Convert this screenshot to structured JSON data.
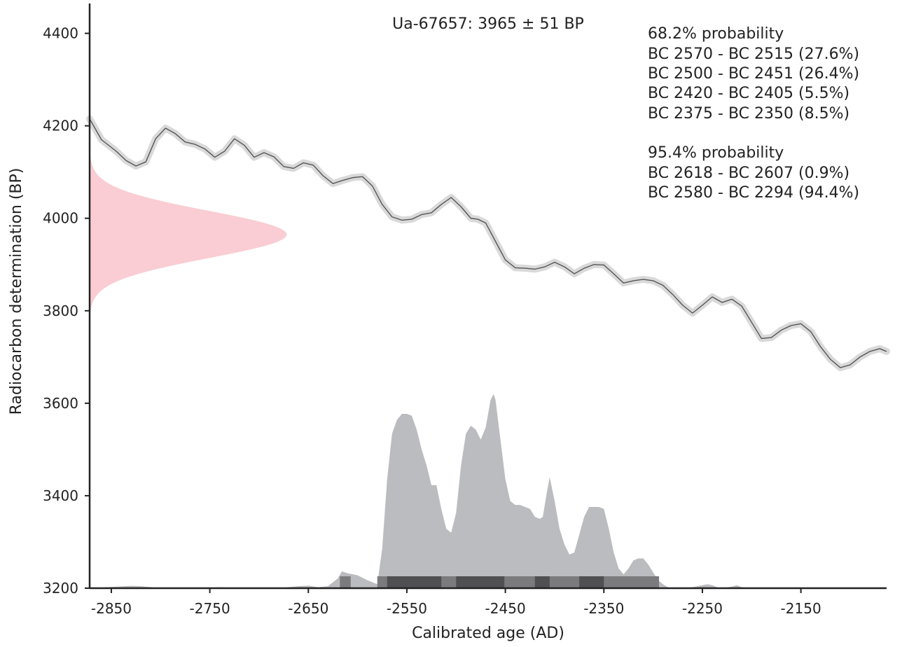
{
  "chart_data": {
    "type": "area",
    "title": "Ua-67657: 3965 ± 51 BP",
    "xlabel": "Calibrated age (AD)",
    "ylabel": "Radiocarbon determination (BP)",
    "xlim": [
      -2872,
      -2063
    ],
    "ylim": [
      3200,
      4460
    ],
    "xticks": [
      -2850,
      -2750,
      -2650,
      -2550,
      -2450,
      -2350,
      -2250,
      -2150
    ],
    "yticks": [
      3200,
      3400,
      3600,
      3800,
      4000,
      4200,
      4400
    ],
    "grid": false,
    "measurement": {
      "mean_bp": 3965,
      "sigma_bp": 51,
      "color": "#f9cdd3"
    },
    "calibration_curve": {
      "line_color": "#555555",
      "band_color": "#d9d9d9",
      "x": [
        -2872,
        -2860,
        -2845,
        -2835,
        -2825,
        -2815,
        -2805,
        -2795,
        -2785,
        -2775,
        -2765,
        -2755,
        -2745,
        -2735,
        -2725,
        -2715,
        -2705,
        -2695,
        -2685,
        -2675,
        -2665,
        -2655,
        -2645,
        -2635,
        -2625,
        -2615,
        -2605,
        -2595,
        -2585,
        -2575,
        -2565,
        -2555,
        -2545,
        -2535,
        -2525,
        -2515,
        -2505,
        -2495,
        -2485,
        -2478,
        -2470,
        -2460,
        -2450,
        -2440,
        -2430,
        -2420,
        -2410,
        -2400,
        -2390,
        -2380,
        -2370,
        -2360,
        -2350,
        -2340,
        -2330,
        -2320,
        -2310,
        -2300,
        -2290,
        -2280,
        -2270,
        -2260,
        -2250,
        -2240,
        -2230,
        -2220,
        -2210,
        -2200,
        -2190,
        -2180,
        -2170,
        -2160,
        -2150,
        -2140,
        -2130,
        -2120,
        -2110,
        -2100,
        -2090,
        -2080,
        -2070,
        -2063
      ],
      "y": [
        4215,
        4170,
        4145,
        4125,
        4113,
        4122,
        4172,
        4195,
        4183,
        4165,
        4160,
        4150,
        4132,
        4145,
        4172,
        4158,
        4132,
        4142,
        4133,
        4112,
        4108,
        4120,
        4115,
        4092,
        4075,
        4082,
        4088,
        4090,
        4070,
        4030,
        4003,
        3996,
        3998,
        4008,
        4012,
        4030,
        4045,
        4025,
        4000,
        3998,
        3990,
        3950,
        3910,
        3893,
        3892,
        3890,
        3895,
        3905,
        3895,
        3880,
        3892,
        3900,
        3899,
        3880,
        3860,
        3865,
        3868,
        3865,
        3855,
        3835,
        3812,
        3795,
        3812,
        3830,
        3818,
        3825,
        3810,
        3775,
        3740,
        3742,
        3758,
        3768,
        3772,
        3755,
        3722,
        3695,
        3677,
        3683,
        3700,
        3712,
        3718,
        3712
      ]
    },
    "posterior_distribution": {
      "color": "#bbbcbf",
      "x": [
        -2872,
        -2830,
        -2820,
        -2800,
        -2760,
        -2740,
        -2720,
        -2700,
        -2680,
        -2660,
        -2650,
        -2640,
        -2630,
        -2620,
        -2616,
        -2610,
        -2600,
        -2590,
        -2580,
        -2575,
        -2570,
        -2565,
        -2560,
        -2555,
        -2550,
        -2545,
        -2540,
        -2535,
        -2530,
        -2525,
        -2520,
        -2515,
        -2510,
        -2505,
        -2500,
        -2495,
        -2490,
        -2485,
        -2480,
        -2475,
        -2470,
        -2465,
        -2462,
        -2460,
        -2455,
        -2450,
        -2445,
        -2440,
        -2435,
        -2430,
        -2425,
        -2420,
        -2415,
        -2412,
        -2408,
        -2405,
        -2400,
        -2395,
        -2390,
        -2385,
        -2380,
        -2375,
        -2370,
        -2365,
        -2360,
        -2355,
        -2350,
        -2345,
        -2340,
        -2335,
        -2330,
        -2325,
        -2320,
        -2315,
        -2310,
        -2305,
        -2300,
        -2295,
        -2290,
        -2285,
        -2280,
        -2270,
        -2260,
        -2250,
        -2245,
        -2240,
        -2235,
        -2230,
        -2220,
        -2215,
        -2210,
        -2200,
        -2063
      ],
      "y": [
        0,
        0.012,
        0.01,
        0,
        0,
        0.005,
        0,
        0.003,
        0,
        0.01,
        0.013,
        0.005,
        0.01,
        0.05,
        0.085,
        0.075,
        0.065,
        0.04,
        0.02,
        0.2,
        0.55,
        0.78,
        0.85,
        0.88,
        0.88,
        0.87,
        0.8,
        0.7,
        0.62,
        0.52,
        0.52,
        0.4,
        0.3,
        0.28,
        0.38,
        0.62,
        0.78,
        0.82,
        0.8,
        0.75,
        0.81,
        0.95,
        0.98,
        0.95,
        0.75,
        0.55,
        0.44,
        0.42,
        0.42,
        0.41,
        0.4,
        0.36,
        0.35,
        0.36,
        0.48,
        0.56,
        0.44,
        0.3,
        0.22,
        0.17,
        0.18,
        0.27,
        0.36,
        0.41,
        0.41,
        0.41,
        0.4,
        0.3,
        0.18,
        0.1,
        0.07,
        0.1,
        0.14,
        0.15,
        0.15,
        0.12,
        0.08,
        0.04,
        0.02,
        0.005,
        0,
        0,
        0.005,
        0.015,
        0.02,
        0.015,
        0.005,
        0,
        0.008,
        0.015,
        0.005,
        0,
        0
      ]
    },
    "range_bars": {
      "sigma2_color": "#7b7b7e",
      "sigma1_color": "#505052",
      "sigma2": [
        [
          -2618,
          -2607
        ],
        [
          -2580,
          -2294
        ]
      ],
      "sigma1": [
        [
          -2570,
          -2515
        ],
        [
          -2500,
          -2451
        ],
        [
          -2420,
          -2405
        ],
        [
          -2375,
          -2350
        ]
      ]
    },
    "annotations": {
      "heading_1sigma": "68.2% probability",
      "lines_1sigma": [
        "BC 2570 - BC 2515 (27.6%)",
        "BC 2500 - BC 2451 (26.4%)",
        "BC 2420 - BC 2405 (5.5%)",
        "BC 2375 - BC 2350 (8.5%)"
      ],
      "heading_2sigma": "95.4% probability",
      "lines_2sigma": [
        "BC 2618 - BC 2607 (0.9%)",
        "BC 2580 - BC 2294 (94.4%)"
      ]
    }
  }
}
